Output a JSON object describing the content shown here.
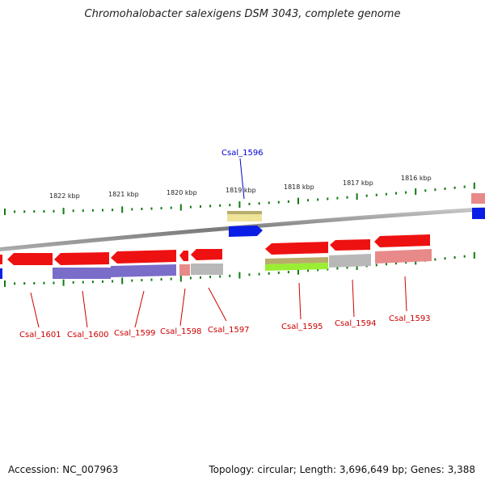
{
  "title": "Chromohalobacter salexigens DSM 3043, complete genome",
  "footer": {
    "accession": "Accession: NC_007963",
    "summary": "Topology: circular; Length: 3,696,649 bp; Genes: 3,388"
  },
  "colors": {
    "gene_red": "#ee1111",
    "label_red": "#cc0000",
    "label_blue": "#0000cc",
    "blue": "#0a1ee6",
    "purple": "#7a6cc9",
    "grey": "#b8b8b8",
    "pink": "#e88a8a",
    "olive": "#b8ad6a",
    "lime": "#99ee33",
    "yellow": "#f0e39a",
    "tick_green": "#117a11",
    "backbone": "#8a8a8a"
  },
  "scale_labels": [
    "1822 kbp",
    "1821 kbp",
    "1820 kbp",
    "1819 kbp",
    "1818 kbp",
    "1817 kbp",
    "1816 kbp"
  ],
  "gene_labels": [
    "Csal_1596",
    "Csal_1601",
    "Csal_1600",
    "Csal_1599",
    "Csal_1598",
    "Csal_1597",
    "Csal_1595",
    "Csal_1594",
    "Csal_1593"
  ]
}
